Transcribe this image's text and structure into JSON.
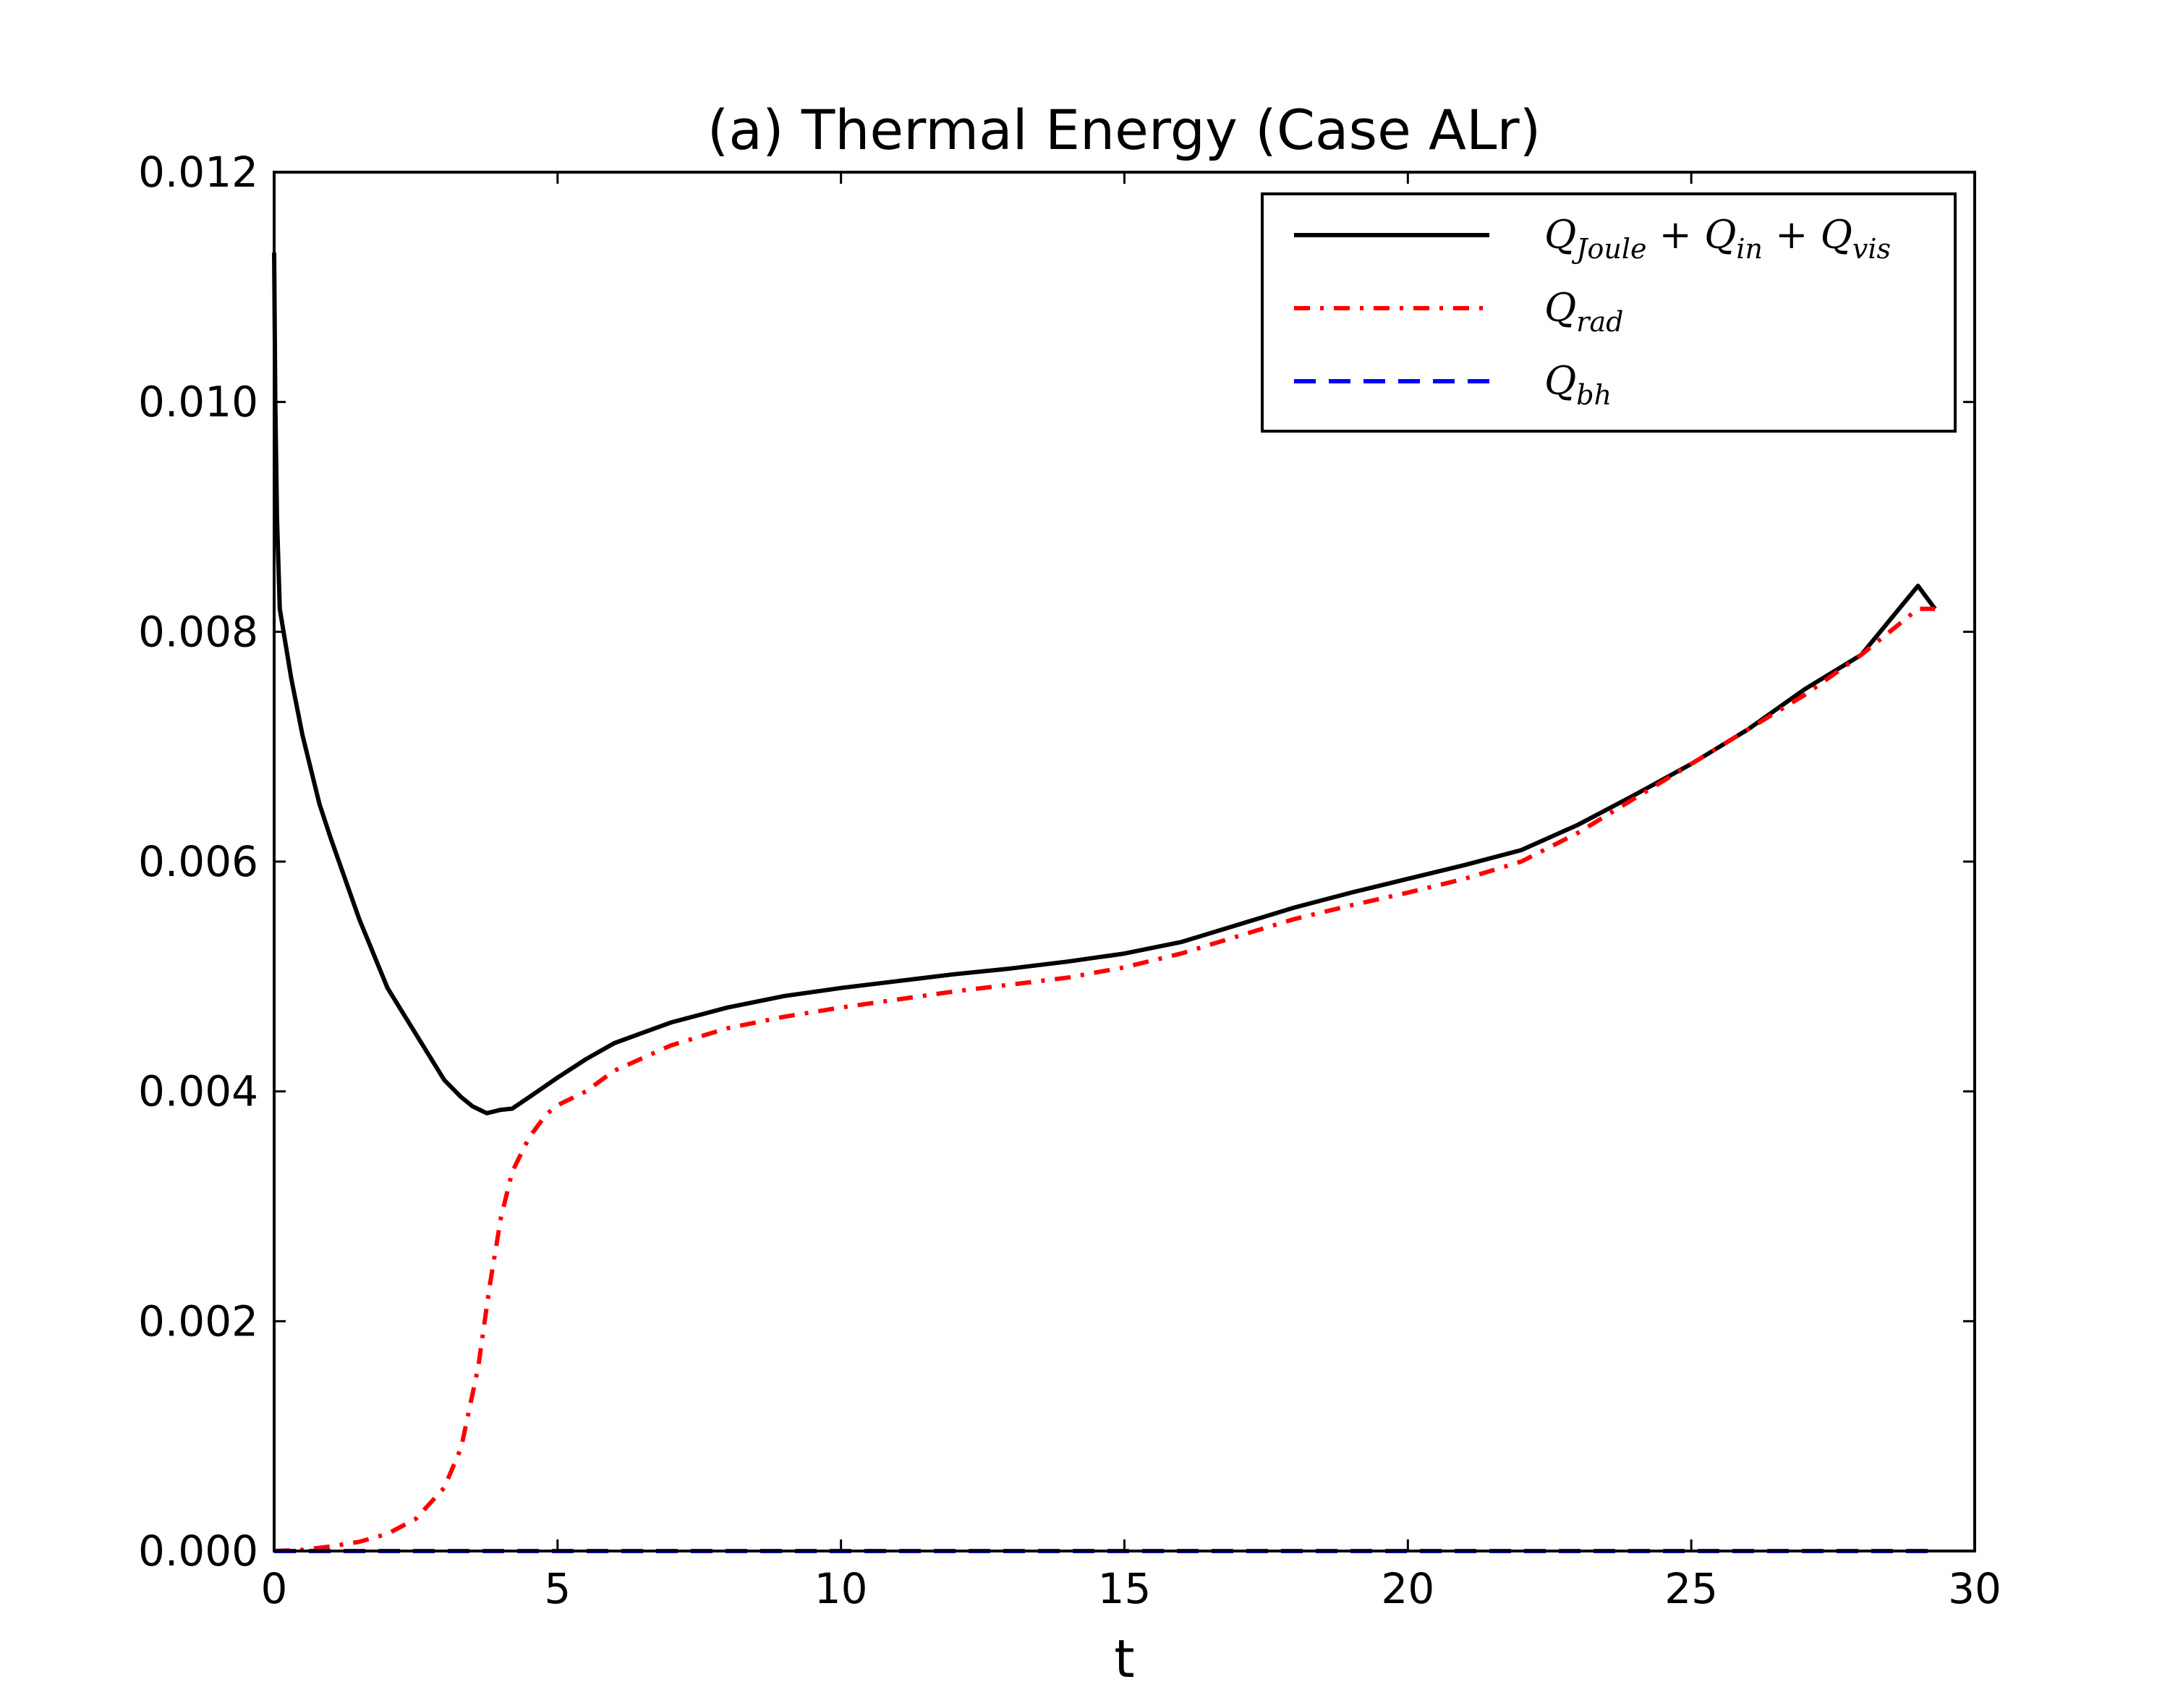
{
  "chart_data": {
    "type": "line",
    "title": "(a) Thermal Energy (Case ALr)",
    "xlabel": "t",
    "ylabel": "",
    "xlim": [
      0,
      30
    ],
    "ylim": [
      0,
      0.012
    ],
    "xticks": [
      0,
      5,
      10,
      15,
      20,
      25,
      30
    ],
    "xtick_labels": [
      "0",
      "5",
      "10",
      "15",
      "20",
      "25",
      "30"
    ],
    "yticks": [
      0,
      0.002,
      0.004,
      0.006,
      0.008,
      0.01,
      0.012
    ],
    "ytick_labels": [
      "0.000",
      "0.002",
      "0.004",
      "0.006",
      "0.008",
      "0.010",
      "0.012"
    ],
    "grid": false,
    "legend_position": "top-right",
    "series": [
      {
        "name": "Q_{Joule} + Q_{in} + Q_{vis}",
        "legend_main": "Q",
        "legend_parts": [
          {
            "base": "Q",
            "sub": "Joule"
          },
          {
            "base": "Q",
            "sub": "in"
          },
          {
            "base": "Q",
            "sub": "vis"
          }
        ],
        "color": "#000000",
        "style": "solid",
        "x": [
          0,
          0.02,
          0.05,
          0.1,
          0.3,
          0.5,
          0.8,
          1.0,
          1.5,
          2.0,
          2.5,
          3.0,
          3.3,
          3.5,
          3.75,
          4.0,
          4.2,
          4.5,
          5.0,
          5.5,
          6.0,
          7.0,
          8.0,
          9.0,
          10.0,
          11.0,
          12.0,
          13.0,
          14.0,
          15.0,
          16.0,
          17.0,
          18.0,
          19.0,
          20.0,
          21.0,
          22.0,
          23.0,
          24.0,
          25.0,
          26.0,
          27.0,
          28.0,
          29.0,
          29.3
        ],
        "y": [
          0.0113,
          0.01,
          0.009,
          0.0082,
          0.0076,
          0.0071,
          0.0065,
          0.0062,
          0.0055,
          0.0049,
          0.0045,
          0.0041,
          0.00395,
          0.00387,
          0.00381,
          0.00384,
          0.00385,
          0.00395,
          0.00412,
          0.00428,
          0.00442,
          0.0046,
          0.00473,
          0.00483,
          0.0049,
          0.00496,
          0.00502,
          0.00507,
          0.00513,
          0.0052,
          0.0053,
          0.00545,
          0.0056,
          0.00573,
          0.00585,
          0.00597,
          0.0061,
          0.00632,
          0.00658,
          0.00685,
          0.00715,
          0.0075,
          0.0078,
          0.0084,
          0.0082
        ]
      },
      {
        "name": "Q_{rad}",
        "legend_parts": [
          {
            "base": "Q",
            "sub": "rad"
          }
        ],
        "color": "#ff0000",
        "style": "dashdot",
        "x": [
          0,
          0.5,
          1.0,
          1.5,
          2.0,
          2.5,
          3.0,
          3.3,
          3.6,
          3.8,
          4.0,
          4.2,
          4.5,
          4.8,
          5.0,
          5.5,
          6.0,
          7.0,
          8.0,
          9.0,
          10.0,
          11.0,
          12.0,
          13.0,
          14.0,
          15.0,
          16.0,
          17.0,
          18.0,
          19.0,
          20.0,
          21.0,
          22.0,
          23.0,
          24.0,
          25.0,
          26.0,
          27.0,
          28.0,
          29.0,
          29.3
        ],
        "y": [
          0,
          1e-05,
          4e-05,
          8e-05,
          0.00015,
          0.00028,
          0.00055,
          0.0009,
          0.0016,
          0.0023,
          0.0029,
          0.0033,
          0.0036,
          0.0038,
          0.00388,
          0.004,
          0.00418,
          0.0044,
          0.00455,
          0.00465,
          0.00473,
          0.0048,
          0.00487,
          0.00493,
          0.00499,
          0.00508,
          0.0052,
          0.00535,
          0.0055,
          0.00562,
          0.00573,
          0.00585,
          0.006,
          0.00625,
          0.00655,
          0.00685,
          0.00715,
          0.00745,
          0.0078,
          0.0082,
          0.0082
        ]
      },
      {
        "name": "Q_{bh}",
        "legend_parts": [
          {
            "base": "Q",
            "sub": "bh"
          }
        ],
        "color": "#0000ff",
        "style": "dashed",
        "x": [
          0,
          5,
          10,
          15,
          20,
          25,
          29.3
        ],
        "y": [
          0,
          0,
          0,
          0,
          0,
          0,
          0
        ]
      }
    ]
  }
}
